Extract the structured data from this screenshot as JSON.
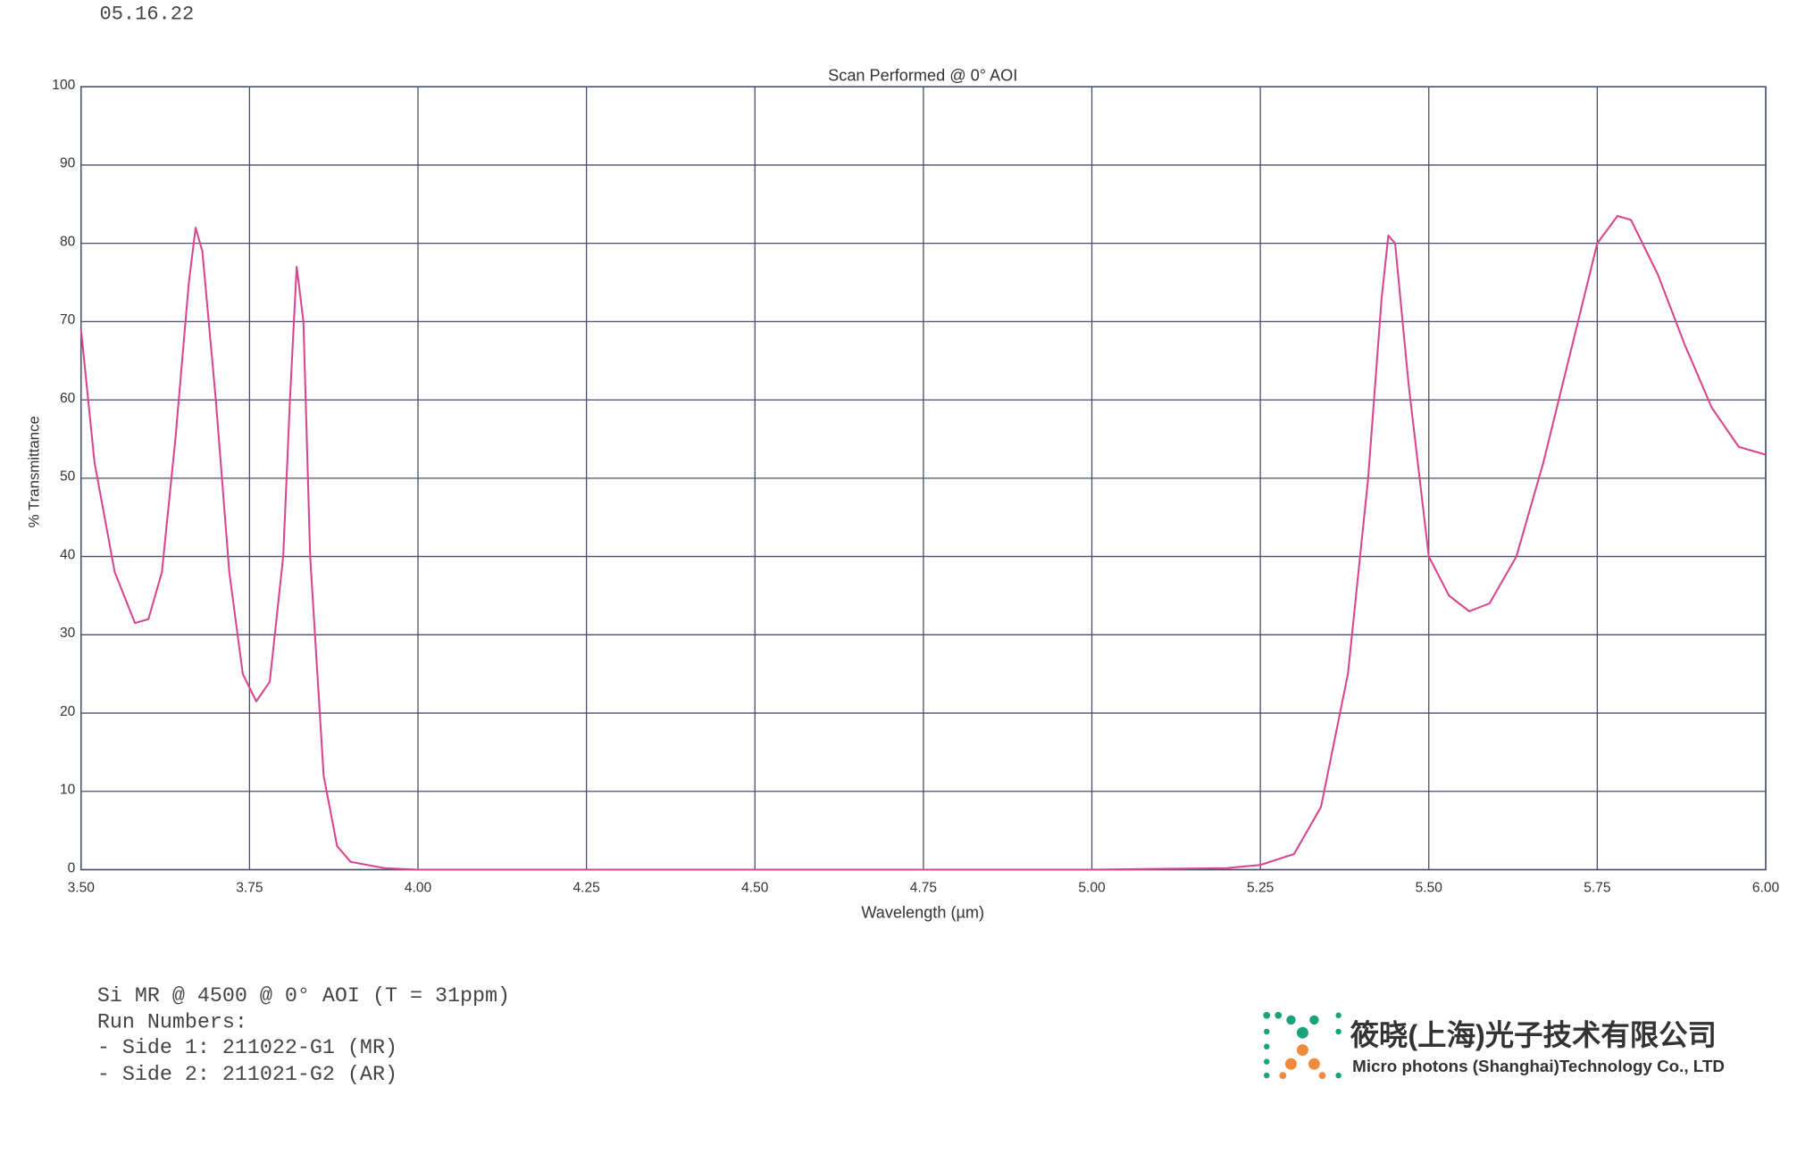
{
  "header": {
    "date": "05.16.22"
  },
  "chart_data": {
    "type": "line",
    "title": "Scan Performed @ 0° AOI",
    "xlabel": "Wavelength (µm)",
    "ylabel": "% Transmittance",
    "x": [
      3.5,
      3.52,
      3.55,
      3.58,
      3.6,
      3.62,
      3.64,
      3.66,
      3.67,
      3.68,
      3.7,
      3.72,
      3.74,
      3.76,
      3.78,
      3.8,
      3.81,
      3.82,
      3.83,
      3.84,
      3.86,
      3.88,
      3.9,
      3.95,
      4.0,
      4.5,
      5.0,
      5.2,
      5.25,
      5.3,
      5.34,
      5.38,
      5.41,
      5.43,
      5.44,
      5.45,
      5.47,
      5.5,
      5.53,
      5.56,
      5.59,
      5.63,
      5.67,
      5.71,
      5.75,
      5.78,
      5.8,
      5.84,
      5.88,
      5.92,
      5.96,
      6.0
    ],
    "series": [
      {
        "name": "% Transmittance",
        "color": "#d6478f",
        "values": [
          69,
          52,
          38,
          31.5,
          32,
          38,
          55,
          75,
          82,
          79,
          60,
          38,
          25,
          21.5,
          24,
          40,
          60,
          77,
          70,
          40,
          12,
          3,
          1,
          0.2,
          0,
          0,
          0,
          0.2,
          0.6,
          2,
          8,
          25,
          50,
          73,
          81,
          80,
          62,
          40,
          35,
          33,
          34,
          40,
          52,
          66,
          80,
          83.5,
          83,
          76,
          67,
          59,
          54,
          53
        ]
      }
    ],
    "xlim": [
      3.5,
      6.0
    ],
    "xticks": [
      {
        "value": 3.5,
        "label": "3.50"
      },
      {
        "value": 3.75,
        "label": "3.75"
      },
      {
        "value": 4.0,
        "label": "4.00"
      },
      {
        "value": 4.25,
        "label": "4.25"
      },
      {
        "value": 4.5,
        "label": "4.50"
      },
      {
        "value": 4.75,
        "label": "4.75"
      },
      {
        "value": 5.0,
        "label": "5.00"
      },
      {
        "value": 5.25,
        "label": "5.25"
      },
      {
        "value": 5.5,
        "label": "5.50"
      },
      {
        "value": 5.75,
        "label": "5.75"
      },
      {
        "value": 6.0,
        "label": "6.00"
      }
    ],
    "ylim": [
      0,
      100
    ],
    "yticks": [
      0,
      10,
      20,
      30,
      40,
      50,
      60,
      70,
      80,
      90,
      100
    ],
    "grid": true
  },
  "notes": [
    "Si MR @ 4500 @ 0° AOI (T = 31ppm)",
    "Run Numbers:",
    "- Side 1: 211022-G1 (MR)",
    "- Side 2: 211021-G2 (AR)"
  ],
  "logo": {
    "name_cn": "筱晓(上海)光子技术有限公司",
    "name_en": "Micro photons (Shanghai)Technology Co., LTD"
  }
}
